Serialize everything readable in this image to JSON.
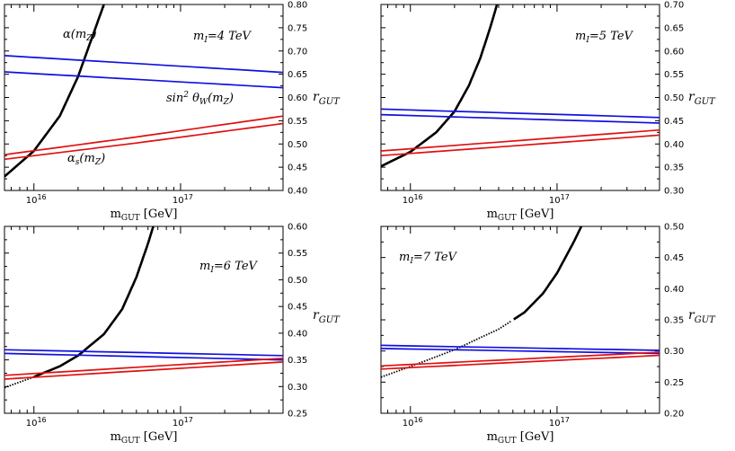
{
  "chart_data": [
    {
      "type": "line",
      "xlabel": "m_GUT [GeV]",
      "ylabel": "r_GUT",
      "xscale": "log",
      "xlim": [
        6300000000000000.0,
        5e+17
      ],
      "ylim": [
        0.4,
        0.8
      ],
      "yticks": [
        "0.40",
        "0.45",
        "0.50",
        "0.55",
        "0.60",
        "0.65",
        "0.70",
        "0.75",
        "0.80"
      ],
      "xticks": [
        {
          "value": 1e+16,
          "base": "10",
          "exp": "16"
        },
        {
          "value": 1e+17,
          "base": "10",
          "exp": "17"
        }
      ],
      "annotation": {
        "base": "m",
        "sub": "I",
        "text": "=4 TeV"
      },
      "curve_labels": [
        {
          "base": "α(m",
          "sub": "Z",
          "tail": ")",
          "near": "black"
        },
        {
          "base": "sin",
          "sup": "2",
          "mid": " θ",
          "sub": "W",
          "tail": "(m",
          "sub2": "Z",
          "tail2": ")",
          "near": "blue"
        },
        {
          "base": "α",
          "sub": "s",
          "tail": "(m",
          "sub2": "Z",
          "tail2": ")",
          "near": "red"
        }
      ],
      "series": [
        {
          "role": "alpha",
          "color": "#000000",
          "x": [
            6300000000000000.0,
            1e+16,
            1.5e+16,
            2e+16,
            2.5e+16,
            3e+16,
            3.1e+16
          ],
          "y": [
            0.43,
            0.485,
            0.56,
            0.645,
            0.73,
            0.8,
            0.815
          ]
        },
        {
          "role": "sin2thetaW-upper",
          "color": "#1010e0",
          "x": [
            6300000000000000.0,
            5e+17
          ],
          "y": [
            0.69,
            0.654
          ]
        },
        {
          "role": "sin2thetaW-lower",
          "color": "#1010e0",
          "x": [
            6300000000000000.0,
            5e+17
          ],
          "y": [
            0.655,
            0.621
          ]
        },
        {
          "role": "alphas-upper",
          "color": "#e01010",
          "x": [
            6300000000000000.0,
            5e+16,
            5e+17
          ],
          "y": [
            0.477,
            0.515,
            0.56
          ]
        },
        {
          "role": "alphas-lower",
          "color": "#e01010",
          "x": [
            6300000000000000.0,
            5e+16,
            5e+17
          ],
          "y": [
            0.467,
            0.502,
            0.544
          ]
        }
      ]
    },
    {
      "type": "line",
      "xlabel": "m_GUT [GeV]",
      "ylabel": "r_GUT",
      "xscale": "log",
      "xlim": [
        6300000000000000.0,
        5e+17
      ],
      "ylim": [
        0.3,
        0.7
      ],
      "yticks": [
        "0.30",
        "0.35",
        "0.40",
        "0.45",
        "0.50",
        "0.55",
        "0.60",
        "0.65",
        "0.70"
      ],
      "xticks": [
        {
          "value": 1e+16,
          "base": "10",
          "exp": "16"
        },
        {
          "value": 1e+17,
          "base": "10",
          "exp": "17"
        }
      ],
      "annotation": {
        "base": "m",
        "sub": "I",
        "text": "=5 TeV"
      },
      "series": [
        {
          "role": "alpha",
          "color": "#000000",
          "x": [
            6300000000000000.0,
            1e+16,
            1.5e+16,
            2e+16,
            2.5e+16,
            3e+16,
            3.5e+16,
            4e+16
          ],
          "y": [
            0.352,
            0.383,
            0.425,
            0.47,
            0.525,
            0.585,
            0.65,
            0.712
          ]
        },
        {
          "role": "sin2thetaW-upper",
          "color": "#1010e0",
          "x": [
            6300000000000000.0,
            5e+17
          ],
          "y": [
            0.475,
            0.457
          ]
        },
        {
          "role": "sin2thetaW-lower",
          "color": "#1010e0",
          "x": [
            6300000000000000.0,
            5e+17
          ],
          "y": [
            0.463,
            0.445
          ]
        },
        {
          "role": "alphas-upper",
          "color": "#e01010",
          "x": [
            6300000000000000.0,
            5e+17
          ],
          "y": [
            0.385,
            0.43
          ]
        },
        {
          "role": "alphas-lower",
          "color": "#e01010",
          "x": [
            6300000000000000.0,
            5e+17
          ],
          "y": [
            0.375,
            0.419
          ]
        }
      ]
    },
    {
      "type": "line",
      "xlabel": "m_GUT [GeV]",
      "ylabel": "r_GUT",
      "xscale": "log",
      "xlim": [
        6300000000000000.0,
        5e+17
      ],
      "ylim": [
        0.25,
        0.6
      ],
      "yticks": [
        "0.25",
        "0.30",
        "0.35",
        "0.40",
        "0.45",
        "0.50",
        "0.55",
        "0.60"
      ],
      "xticks": [
        {
          "value": 1e+16,
          "base": "10",
          "exp": "16"
        },
        {
          "value": 1e+17,
          "base": "10",
          "exp": "17"
        }
      ],
      "annotation": {
        "base": "m",
        "sub": "I",
        "text": "=6 TeV"
      },
      "series": [
        {
          "role": "alpha",
          "color": "#000000",
          "dotted_until": 1e+16,
          "x": [
            6300000000000000.0,
            1e+16,
            1.5e+16,
            2e+16,
            3e+16,
            4e+16,
            5e+16,
            6e+16,
            6.6e+16
          ],
          "y": [
            0.298,
            0.318,
            0.338,
            0.358,
            0.398,
            0.445,
            0.505,
            0.568,
            0.605
          ]
        },
        {
          "role": "sin2thetaW-upper",
          "color": "#1010e0",
          "x": [
            6300000000000000.0,
            5e+17
          ],
          "y": [
            0.369,
            0.358
          ]
        },
        {
          "role": "sin2thetaW-lower",
          "color": "#1010e0",
          "x": [
            6300000000000000.0,
            5e+17
          ],
          "y": [
            0.362,
            0.35
          ]
        },
        {
          "role": "alphas-upper",
          "color": "#e01010",
          "x": [
            6300000000000000.0,
            5e+17
          ],
          "y": [
            0.321,
            0.353
          ]
        },
        {
          "role": "alphas-lower",
          "color": "#e01010",
          "x": [
            6300000000000000.0,
            5e+17
          ],
          "y": [
            0.314,
            0.346
          ]
        }
      ]
    },
    {
      "type": "line",
      "xlabel": "m_GUT [GeV]",
      "ylabel": "r_GUT",
      "xscale": "log",
      "xlim": [
        6300000000000000.0,
        5e+17
      ],
      "ylim": [
        0.2,
        0.5
      ],
      "yticks": [
        "0.20",
        "0.25",
        "0.30",
        "0.35",
        "0.40",
        "0.45",
        "0.50"
      ],
      "xticks": [
        {
          "value": 1e+16,
          "base": "10",
          "exp": "16"
        },
        {
          "value": 1e+17,
          "base": "10",
          "exp": "17"
        }
      ],
      "annotation": {
        "base": "m",
        "sub": "I",
        "text": "=7 TeV"
      },
      "series": [
        {
          "role": "alpha",
          "color": "#000000",
          "dotted_until": 5e+16,
          "x": [
            6300000000000000.0,
            1e+16,
            2e+16,
            4e+16,
            6e+16,
            8e+16,
            1e+17,
            1.3e+17,
            1.5e+17
          ],
          "y": [
            0.258,
            0.275,
            0.302,
            0.335,
            0.362,
            0.392,
            0.425,
            0.475,
            0.505
          ]
        },
        {
          "role": "sin2thetaW-upper",
          "color": "#1010e0",
          "x": [
            6300000000000000.0,
            5e+17
          ],
          "y": [
            0.309,
            0.301
          ]
        },
        {
          "role": "sin2thetaW-lower",
          "color": "#1010e0",
          "x": [
            6300000000000000.0,
            5e+17
          ],
          "y": [
            0.304,
            0.296
          ]
        },
        {
          "role": "alphas-upper",
          "color": "#e01010",
          "x": [
            6300000000000000.0,
            5e+17
          ],
          "y": [
            0.276,
            0.298
          ]
        },
        {
          "role": "alphas-lower",
          "color": "#e01010",
          "x": [
            6300000000000000.0,
            5e+17
          ],
          "y": [
            0.271,
            0.293
          ]
        }
      ]
    }
  ]
}
